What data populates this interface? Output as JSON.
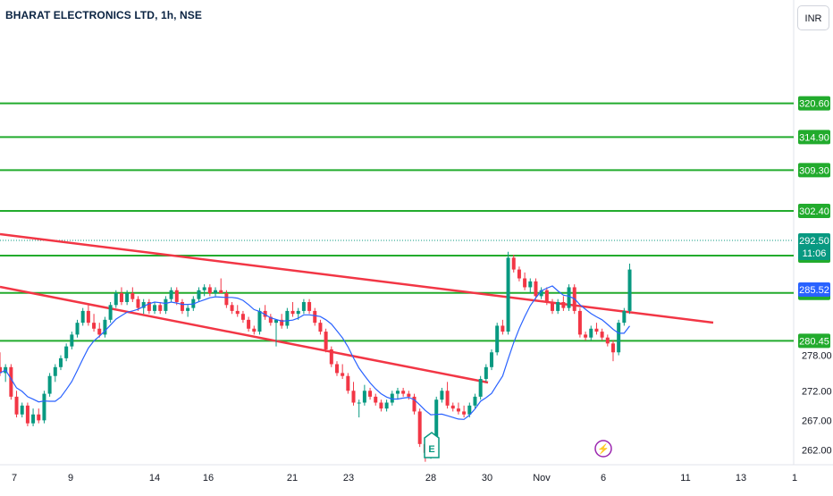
{
  "header": {
    "title": "BHARAT ELECTRONICS LTD, 1h, NSE",
    "currency": "INR"
  },
  "colors": {
    "up": "#089981",
    "down": "#f23645",
    "ma": "#2962ff",
    "level": "#22ab2d",
    "trendline": "#f23645",
    "last_price": "#089981",
    "ma_badge": "#2962ff"
  },
  "chart_data": {
    "type": "candlestick",
    "symbol": "BHARAT ELECTRONICS LTD",
    "interval": "1h",
    "exchange": "NSE",
    "x_tick_labels": [
      "7",
      "9",
      "14",
      "16",
      "21",
      "23",
      "28",
      "30",
      "Nov",
      "6",
      "11",
      "13",
      "1"
    ],
    "y_tick_labels": [
      "262.00",
      "267.00",
      "272.00",
      "278.00"
    ],
    "ylim": [
      259.5,
      329
    ],
    "horizontal_levels": [
      "320.60",
      "314.90",
      "309.30",
      "302.40",
      "294.85",
      "288.55",
      "280.45"
    ],
    "last_price": {
      "value": "292.50",
      "countdown": "11:06"
    },
    "ma_value": "285.52",
    "events": [
      {
        "kind": "earnings",
        "label": "E",
        "date": "28"
      },
      {
        "kind": "dividend",
        "label": "⚡",
        "date": "Nov 5"
      }
    ],
    "trendlines": [
      {
        "from": [
          "Oct 4",
          293.1
        ],
        "to": [
          "Nov 12",
          279.5
        ]
      },
      {
        "from": [
          "Oct 4",
          286.0
        ],
        "to": [
          "Oct 29",
          270.5
        ]
      }
    ],
    "candles": [
      [
        276,
        278.5,
        274.5,
        275
      ],
      [
        275,
        276.5,
        273.5,
        276
      ],
      [
        276,
        276.5,
        270.5,
        271
      ],
      [
        271,
        272,
        267.5,
        268
      ],
      [
        268,
        270,
        267.5,
        269.5
      ],
      [
        269.5,
        270,
        266,
        266.5
      ],
      [
        266.5,
        269,
        266,
        268
      ],
      [
        268,
        269,
        266.5,
        267
      ],
      [
        267,
        272,
        266.5,
        271.5
      ],
      [
        271.5,
        275,
        271,
        274.5
      ],
      [
        274.5,
        276.5,
        273.5,
        276
      ],
      [
        276,
        278,
        275.5,
        277.5
      ],
      [
        277.5,
        280,
        277,
        279.5
      ],
      [
        279.5,
        282,
        279,
        281.5
      ],
      [
        281.5,
        284,
        281,
        283.5
      ],
      [
        283.5,
        286,
        283,
        285.5
      ],
      [
        285.5,
        286.5,
        283,
        283.5
      ],
      [
        283.5,
        285,
        282,
        282.5
      ],
      [
        282.5,
        283.5,
        281,
        281.5
      ],
      [
        281.5,
        284.5,
        281,
        284
      ],
      [
        284,
        287,
        283.5,
        286.5
      ],
      [
        286.5,
        289,
        286,
        288.5
      ],
      [
        288.5,
        289.5,
        286.5,
        287
      ],
      [
        287,
        289,
        286.5,
        288.5
      ],
      [
        288.5,
        289.5,
        287,
        287.5
      ],
      [
        287.5,
        288,
        285.5,
        286
      ],
      [
        286,
        287.5,
        285,
        287
      ],
      [
        287,
        287.5,
        285,
        285.5
      ],
      [
        285.5,
        287,
        285,
        286.5
      ],
      [
        286.5,
        287,
        285,
        285.5
      ],
      [
        285.5,
        288,
        285,
        287.5
      ],
      [
        287.5,
        289.5,
        287,
        289
      ],
      [
        289,
        289.5,
        286.5,
        287
      ],
      [
        287,
        287.5,
        285,
        285.5
      ],
      [
        285.5,
        286.5,
        284.5,
        286
      ],
      [
        286,
        288,
        285.5,
        287.5
      ],
      [
        287.5,
        289.5,
        287,
        289
      ],
      [
        289,
        290,
        288,
        289.5
      ],
      [
        289.5,
        290,
        288,
        288.5
      ],
      [
        288.5,
        289.5,
        288,
        289
      ],
      [
        289,
        291,
        288.5,
        288.5
      ],
      [
        288.5,
        289,
        286,
        286.5
      ],
      [
        286.5,
        287,
        285,
        285.5
      ],
      [
        285.5,
        286.5,
        284.5,
        285
      ],
      [
        285,
        285.5,
        283.5,
        284
      ],
      [
        284,
        284.5,
        282,
        282.5
      ],
      [
        282.5,
        283,
        281.5,
        282
      ],
      [
        282,
        286,
        281.5,
        285.5
      ],
      [
        285.5,
        286.5,
        284,
        284.5
      ],
      [
        284.5,
        285,
        283,
        283.5
      ],
      [
        283.5,
        284,
        279.5,
        284
      ],
      [
        284,
        285,
        282.5,
        283
      ],
      [
        283,
        286,
        282.5,
        285.5
      ],
      [
        285.5,
        287,
        284.5,
        285
      ],
      [
        285,
        286,
        284,
        285.5
      ],
      [
        285.5,
        287.5,
        285,
        287
      ],
      [
        287,
        287.5,
        285,
        285.5
      ],
      [
        285.5,
        286,
        283,
        283.5
      ],
      [
        283.5,
        284,
        281.5,
        282
      ],
      [
        282,
        282.5,
        278.5,
        279
      ],
      [
        279,
        279.5,
        276,
        276.5
      ],
      [
        276.5,
        277,
        274.5,
        275
      ],
      [
        275,
        276.5,
        274,
        274.5
      ],
      [
        274.5,
        275,
        271.5,
        272
      ],
      [
        272,
        273.5,
        269.5,
        270
      ],
      [
        270,
        270.5,
        267.5,
        270
      ],
      [
        270,
        273,
        269.5,
        272
      ],
      [
        272,
        272.5,
        270.5,
        271
      ],
      [
        271,
        271.5,
        269.5,
        270
      ],
      [
        270,
        270.5,
        268.5,
        269
      ],
      [
        269,
        270.5,
        268.5,
        270
      ],
      [
        270,
        272,
        269.5,
        271.5
      ],
      [
        271.5,
        272.5,
        270.5,
        272
      ],
      [
        272,
        272.5,
        271,
        271.5
      ],
      [
        271.5,
        272,
        270.5,
        271
      ],
      [
        271,
        271.5,
        268,
        268.5
      ],
      [
        268.5,
        269,
        262.5,
        263
      ],
      [
        263,
        263.5,
        260,
        261.5
      ],
      [
        261.5,
        263,
        260.5,
        262.5
      ],
      [
        262.5,
        271,
        262,
        270.5
      ],
      [
        270.5,
        272.5,
        270,
        272
      ],
      [
        272,
        273.5,
        269,
        269.5
      ],
      [
        269.5,
        270,
        268.5,
        269
      ],
      [
        269,
        270,
        268,
        268.5
      ],
      [
        268.5,
        269.5,
        267.5,
        268
      ],
      [
        268,
        270,
        267.5,
        269.5
      ],
      [
        269.5,
        271.5,
        269,
        271
      ],
      [
        271,
        274.5,
        270.5,
        274
      ],
      [
        274,
        276.5,
        273.5,
        276
      ],
      [
        276,
        279,
        275.5,
        278.5
      ],
      [
        278.5,
        283.5,
        278,
        283
      ],
      [
        283,
        284,
        281.5,
        282
      ],
      [
        282,
        295.5,
        281.5,
        294.5
      ],
      [
        294.5,
        295,
        292,
        292.5
      ],
      [
        292.5,
        293,
        290.5,
        291
      ],
      [
        291,
        292,
        289,
        289.5
      ],
      [
        289.5,
        291,
        288.5,
        290.5
      ],
      [
        290.5,
        291,
        287.5,
        288
      ],
      [
        288,
        289.5,
        287.5,
        289
      ],
      [
        289,
        289.5,
        286.5,
        287
      ],
      [
        287,
        287.5,
        285,
        285.5
      ],
      [
        285.5,
        287.5,
        285,
        287
      ],
      [
        287,
        288,
        285.5,
        286
      ],
      [
        286,
        290,
        285.5,
        289.5
      ],
      [
        289.5,
        290,
        285,
        285.5
      ],
      [
        285.5,
        286,
        281,
        281.5
      ],
      [
        281.5,
        282,
        280.5,
        281
      ],
      [
        281,
        283,
        280.5,
        282.5
      ],
      [
        282.5,
        283.5,
        281.5,
        282
      ],
      [
        282,
        282.5,
        280.5,
        281
      ],
      [
        281,
        281.5,
        279.5,
        280
      ],
      [
        280,
        280.5,
        277,
        278.5
      ],
      [
        278.5,
        284,
        278,
        283.5
      ],
      [
        283.5,
        286,
        283,
        285.5
      ],
      [
        285.5,
        293.5,
        285,
        292.5
      ]
    ]
  }
}
